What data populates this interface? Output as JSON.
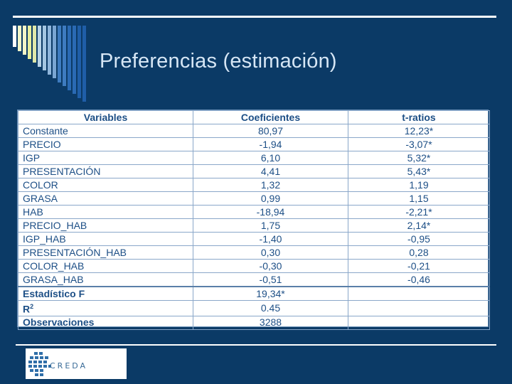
{
  "slide": {
    "title": "Preferencias (estimación)",
    "bar_colors": [
      "#ffffff",
      "#f3f6c8",
      "#f3f6c8",
      "#e9ef9e",
      "#dfe7a9",
      "#b9d4e8",
      "#a4c6e2",
      "#8fb6dc",
      "#7aa6d3",
      "#3e7cc0",
      "#3e7cc0",
      "#2a6ab4",
      "#2a6ab4",
      "#1f5ea8",
      "#1f5ea8"
    ]
  },
  "table": {
    "headers": [
      "Variables",
      "Coeficientes",
      "t-ratios"
    ],
    "rows": [
      {
        "variable": "Constante",
        "coef": "80,97",
        "t": "12,23*"
      },
      {
        "variable": "PRECIO",
        "coef": "-1,94",
        "t": "-3,07*"
      },
      {
        "variable": "IGP",
        "coef": "6,10",
        "t": "5,32*"
      },
      {
        "variable": "PRESENTACIÓN",
        "coef": "4,41",
        "t": "5,43*"
      },
      {
        "variable": "COLOR",
        "coef": "1,32",
        "t": "1,19"
      },
      {
        "variable": "GRASA",
        "coef": "0,99",
        "t": "1,15"
      },
      {
        "variable": "HAB",
        "coef": "-18,94",
        "t": "-2,21*"
      },
      {
        "variable": "PRECIO_HAB",
        "coef": "1,75",
        "t": "2,14*"
      },
      {
        "variable": "IGP_HAB",
        "coef": "-1,40",
        "t": "-0,95"
      },
      {
        "variable": "PRESENTACIÓN_HAB",
        "coef": "0,30",
        "t": "0,28"
      },
      {
        "variable": "COLOR_HAB",
        "coef": "-0,30",
        "t": "-0,21"
      },
      {
        "variable": "GRASA_HAB",
        "coef": "-0,51",
        "t": "-0,46"
      }
    ],
    "stats": [
      {
        "label": "Estadístico F",
        "value": "19,34*"
      },
      {
        "label": "R",
        "sup": "2",
        "value": "0.45"
      },
      {
        "label": "Observaciones",
        "value": "3288"
      }
    ]
  },
  "logo": {
    "text": "CREDA"
  }
}
